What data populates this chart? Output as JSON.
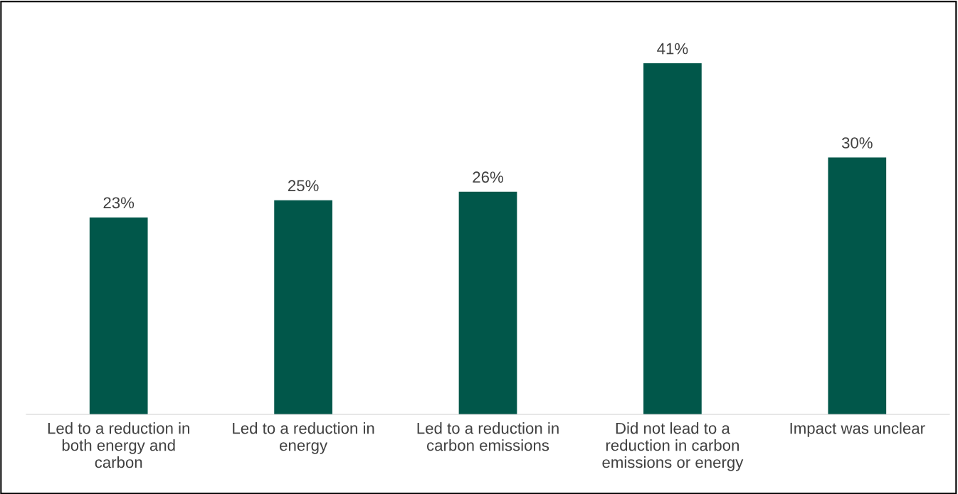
{
  "chart_data": {
    "type": "bar",
    "categories": [
      "Led to a reduction in\nboth energy and\ncarbon",
      "Led to a reduction in\nenergy",
      "Led to a reduction in\ncarbon emissions",
      "Did not lead to a\nreduction in carbon\nemissions or energy",
      "Impact was unclear"
    ],
    "values": [
      23,
      25,
      26,
      41,
      30
    ],
    "value_labels": [
      "23%",
      "25%",
      "26%",
      "41%",
      "30%"
    ],
    "color": "#01574a",
    "tick_labels": "x",
    "grid": false,
    "legend": false
  }
}
